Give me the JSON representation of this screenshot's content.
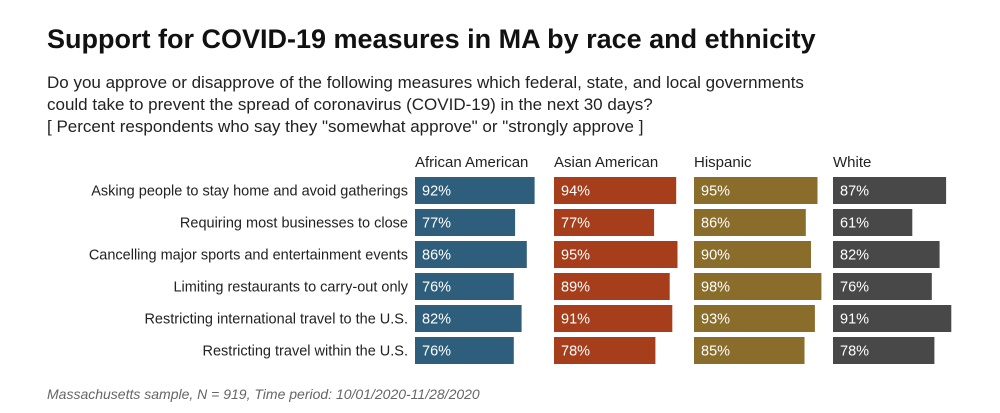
{
  "title": "Support for COVID-19 measures in MA by race and ethnicity",
  "subtitle": [
    "Do you approve or disapprove of the following measures which federal, state, and local governments",
    "could take to prevent the spread of coronavirus (COVID-19) in the next 30 days?",
    "[ Percent respondents who say they \"somewhat approve\" or \"strongly approve ]"
  ],
  "caption": "Massachusetts sample, N = 919, Time period: 10/01/2020-11/28/2020",
  "chart_data": {
    "type": "bar",
    "orientation": "horizontal",
    "categories": [
      "Asking people to stay home and avoid gatherings",
      "Requiring most businesses to close",
      "Cancelling major sports and entertainment events",
      "Limiting restaurants to carry-out only",
      "Restricting international travel to the U.S.",
      "Restricting travel within the U.S."
    ],
    "series": [
      {
        "name": "African American",
        "color": "#2e5e7b",
        "values": [
          92,
          77,
          86,
          76,
          82,
          76
        ]
      },
      {
        "name": "Asian American",
        "color": "#a63e1c",
        "values": [
          94,
          77,
          95,
          89,
          91,
          78
        ]
      },
      {
        "name": "Hispanic",
        "color": "#8a6d2b",
        "values": [
          95,
          86,
          90,
          98,
          93,
          85
        ]
      },
      {
        "name": "White",
        "color": "#484848",
        "values": [
          87,
          61,
          82,
          76,
          91,
          78
        ]
      }
    ],
    "value_suffix": "%",
    "xlim": [
      0,
      100
    ],
    "legend": "none",
    "grid": false
  }
}
